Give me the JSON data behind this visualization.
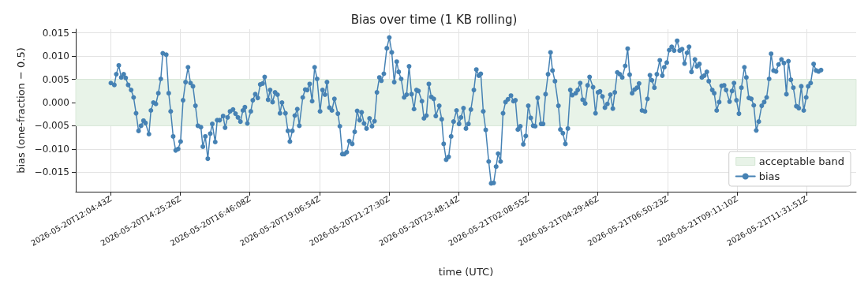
{
  "chart_data": {
    "type": "line",
    "title": "Bias over time (1 KB rolling)",
    "xlabel": "time (UTC)",
    "ylabel": "bias (one-fraction − 0.5)",
    "xlim": [
      "2026-05-20T10:54",
      "2026-05-21T13:12"
    ],
    "xticks": [
      "2026-05-20T12:04:43Z",
      "2026-05-20T14:25:26Z",
      "2026-05-20T16:46:08Z",
      "2026-05-20T19:06:54Z",
      "2026-05-20T21:27:30Z",
      "2026-05-20T23:48:14Z",
      "2026-05-21T02:08:55Z",
      "2026-05-21T04:29:46Z",
      "2026-05-21T06:50:23Z",
      "2026-05-21T09:11:10Z",
      "2026-05-21T11:31:51Z"
    ],
    "ylim": [
      -0.0192,
      0.0158
    ],
    "yticks": [
      {
        "value": -0.015,
        "label": "−0.015"
      },
      {
        "value": -0.01,
        "label": "−0.010"
      },
      {
        "value": -0.005,
        "label": "−0.005"
      },
      {
        "value": 0,
        "label": "0.000"
      },
      0.005,
      {
        "value": 0.01,
        "label": "0.010"
      },
      0.015
    ],
    "grid": true,
    "legend": "lower right",
    "marker": "circle",
    "line_style": "solid",
    "bands": [
      {
        "axis": "y",
        "from": -0.005,
        "to": 0.005,
        "label": "acceptable band",
        "color": "#e8f3e8"
      }
    ],
    "series": [
      {
        "name": "bias",
        "color": "#4682b4",
        "x": [
          "2026-05-20T12:05",
          "2026-05-20T12:12",
          "2026-05-20T12:16",
          "2026-05-20T12:21",
          "2026-05-20T12:26",
          "2026-05-20T12:31",
          "2026-05-20T12:35",
          "2026-05-20T12:40",
          "2026-05-20T12:46",
          "2026-05-20T12:51",
          "2026-05-20T12:56",
          "2026-05-20T13:01",
          "2026-05-20T13:06",
          "2026-05-20T13:11",
          "2026-05-20T13:15",
          "2026-05-20T13:22",
          "2026-05-20T13:26",
          "2026-05-20T13:31",
          "2026-05-20T13:36",
          "2026-05-20T13:41",
          "2026-05-20T13:46",
          "2026-05-20T13:50",
          "2026-05-20T13:57",
          "2026-05-20T14:02",
          "2026-05-20T14:06",
          "2026-05-20T14:11",
          "2026-05-20T14:16",
          "2026-05-20T14:21",
          "2026-05-20T14:26",
          "2026-05-20T14:31",
          "2026-05-20T14:36",
          "2026-05-20T14:41",
          "2026-05-20T14:46",
          "2026-05-20T14:51",
          "2026-05-20T14:56",
          "2026-05-20T15:01",
          "2026-05-20T15:07",
          "2026-05-20T15:11",
          "2026-05-20T15:16",
          "2026-05-20T15:21",
          "2026-05-20T15:26",
          "2026-05-20T15:30",
          "2026-05-20T15:36",
          "2026-05-20T15:40",
          "2026-05-20T15:45",
          "2026-05-20T15:52",
          "2026-05-20T15:56",
          "2026-05-20T16:01",
          "2026-05-20T16:06",
          "2026-05-20T16:12",
          "2026-05-20T16:17",
          "2026-05-20T16:22",
          "2026-05-20T16:27",
          "2026-05-20T16:32",
          "2026-05-20T16:36",
          "2026-05-20T16:41",
          "2026-05-20T16:48",
          "2026-05-20T16:52",
          "2026-05-20T16:57",
          "2026-05-20T17:02",
          "2026-05-20T17:07",
          "2026-05-20T17:12",
          "2026-05-20T17:16",
          "2026-05-20T17:23",
          "2026-05-20T17:27",
          "2026-05-20T17:32",
          "2026-05-20T17:37",
          "2026-05-20T17:42",
          "2026-05-20T17:47",
          "2026-05-20T17:51",
          "2026-05-20T17:58",
          "2026-05-20T18:03",
          "2026-05-20T18:07",
          "2026-05-20T18:12",
          "2026-05-20T18:17",
          "2026-05-20T18:22",
          "2026-05-20T18:26",
          "2026-05-20T18:33",
          "2026-05-20T18:38",
          "2026-05-20T18:42",
          "2026-05-20T18:47",
          "2026-05-20T18:52",
          "2026-05-20T18:57",
          "2026-05-20T19:02",
          "2026-05-20T19:08",
          "2026-05-20T19:13",
          "2026-05-20T19:18",
          "2026-05-20T19:22",
          "2026-05-20T19:27",
          "2026-05-20T19:32",
          "2026-05-20T19:37",
          "2026-05-20T19:44",
          "2026-05-20T19:48",
          "2026-05-20T19:53",
          "2026-05-20T19:57",
          "2026-05-20T20:02",
          "2026-05-20T20:07",
          "2026-05-20T20:13",
          "2026-05-20T20:18",
          "2026-05-20T20:23",
          "2026-05-20T20:28",
          "2026-05-20T20:32",
          "2026-05-20T20:37",
          "2026-05-20T20:42",
          "2026-05-20T20:48",
          "2026-05-20T20:53",
          "2026-05-20T20:58",
          "2026-05-20T21:03",
          "2026-05-20T21:08",
          "2026-05-20T21:12",
          "2026-05-20T21:17",
          "2026-05-20T21:23",
          "2026-05-20T21:28",
          "2026-05-20T21:33",
          "2026-05-20T21:38",
          "2026-05-20T21:43",
          "2026-05-20T21:47",
          "2026-05-20T21:52",
          "2026-05-20T21:58",
          "2026-05-20T22:03",
          "2026-05-20T22:08",
          "2026-05-20T22:13",
          "2026-05-20T22:18",
          "2026-05-20T22:23",
          "2026-05-20T22:27",
          "2026-05-20T22:34",
          "2026-05-20T22:38",
          "2026-05-20T22:43",
          "2026-05-20T22:48",
          "2026-05-20T22:53",
          "2026-05-20T22:58",
          "2026-05-20T23:02",
          "2026-05-20T23:09",
          "2026-05-20T23:14",
          "2026-05-20T23:18",
          "2026-05-20T23:23",
          "2026-05-20T23:28",
          "2026-05-20T23:33",
          "2026-05-20T23:38",
          "2026-05-20T23:44",
          "2026-05-20T23:49",
          "2026-05-20T23:53",
          "2026-05-20T23:58",
          "2026-05-21T00:03",
          "2026-05-21T00:08",
          "2026-05-21T00:13",
          "2026-05-21T00:19",
          "2026-05-21T00:24",
          "2026-05-21T00:29",
          "2026-05-21T00:33",
          "2026-05-21T00:38",
          "2026-05-21T00:43",
          "2026-05-21T00:49",
          "2026-05-21T00:54",
          "2026-05-21T00:59",
          "2026-05-21T01:04",
          "2026-05-21T01:08",
          "2026-05-21T01:13",
          "2026-05-21T01:18",
          "2026-05-21T01:23",
          "2026-05-21T01:28",
          "2026-05-21T01:34",
          "2026-05-21T01:39",
          "2026-05-21T01:43",
          "2026-05-21T01:48",
          "2026-05-21T01:53",
          "2026-05-21T01:59",
          "2026-05-21T02:04",
          "2026-05-21T02:09",
          "2026-05-21T02:14",
          "2026-05-21T02:19",
          "2026-05-21T02:23",
          "2026-05-21T02:28",
          "2026-05-21T02:35",
          "2026-05-21T02:39",
          "2026-05-21T02:44",
          "2026-05-21T02:49",
          "2026-05-21T02:54",
          "2026-05-21T02:58",
          "2026-05-21T03:03",
          "2026-05-21T03:10",
          "2026-05-21T03:14",
          "2026-05-21T03:19",
          "2026-05-21T03:24",
          "2026-05-21T03:29",
          "2026-05-21T03:34",
          "2026-05-21T03:38",
          "2026-05-21T03:45",
          "2026-05-21T03:49",
          "2026-05-21T03:54",
          "2026-05-21T03:59",
          "2026-05-21T04:04",
          "2026-05-21T04:09",
          "2026-05-21T04:13",
          "2026-05-21T04:20",
          "2026-05-21T04:25",
          "2026-05-21T04:30",
          "2026-05-21T04:34",
          "2026-05-21T04:39",
          "2026-05-21T04:44",
          "2026-05-21T04:49",
          "2026-05-21T04:55",
          "2026-05-21T05:00",
          "2026-05-21T05:04",
          "2026-05-21T05:09",
          "2026-05-21T05:14",
          "2026-05-21T05:19",
          "2026-05-21T05:25",
          "2026-05-21T05:30",
          "2026-05-21T05:34",
          "2026-05-21T05:39",
          "2026-05-21T05:44",
          "2026-05-21T05:49",
          "2026-05-21T05:53",
          "2026-05-21T05:59",
          "2026-05-21T06:05",
          "2026-05-21T06:10",
          "2026-05-21T06:15",
          "2026-05-21T06:19",
          "2026-05-21T06:24",
          "2026-05-21T06:29",
          "2026-05-21T06:35",
          "2026-05-21T06:40",
          "2026-05-21T06:44",
          "2026-05-21T06:49",
          "2026-05-21T06:54",
          "2026-05-21T06:59",
          "2026-05-21T07:04",
          "2026-05-21T07:10",
          "2026-05-21T07:15",
          "2026-05-21T07:20",
          "2026-05-21T07:25",
          "2026-05-21T07:30",
          "2026-05-21T07:34",
          "2026-05-21T07:39",
          "2026-05-21T07:46",
          "2026-05-21T07:50",
          "2026-05-21T07:55",
          "2026-05-21T08:00",
          "2026-05-21T08:05",
          "2026-05-21T08:10",
          "2026-05-21T08:14",
          "2026-05-21T08:21",
          "2026-05-21T08:25",
          "2026-05-21T08:30",
          "2026-05-21T08:35",
          "2026-05-21T08:40",
          "2026-05-21T08:45",
          "2026-05-21T08:49",
          "2026-05-21T08:56",
          "2026-05-21T09:01",
          "2026-05-21T09:05",
          "2026-05-21T09:10",
          "2026-05-21T09:15",
          "2026-05-21T09:20",
          "2026-05-21T09:26",
          "2026-05-21T09:30",
          "2026-05-21T09:35",
          "2026-05-21T09:40",
          "2026-05-21T09:45",
          "2026-05-21T09:50",
          "2026-05-21T09:55",
          "2026-05-21T10:01",
          "2026-05-21T10:06",
          "2026-05-21T10:11",
          "2026-05-21T10:16",
          "2026-05-21T10:20",
          "2026-05-21T10:25",
          "2026-05-21T10:30",
          "2026-05-21T10:35",
          "2026-05-21T10:41",
          "2026-05-21T10:46",
          "2026-05-21T10:51",
          "2026-05-21T10:55",
          "2026-05-21T11:00",
          "2026-05-21T11:05",
          "2026-05-21T11:11",
          "2026-05-21T11:16",
          "2026-05-21T11:21",
          "2026-05-21T11:26",
          "2026-05-21T11:31",
          "2026-05-21T11:35",
          "2026-05-21T11:40",
          "2026-05-21T11:46",
          "2026-05-21T11:51",
          "2026-05-21T11:56",
          "2026-05-21T12:01"
        ],
        "values": [
          0.0042,
          0.0038,
          0.0061,
          0.008,
          0.0054,
          0.0061,
          0.0053,
          0.0038,
          0.0027,
          0.0011,
          -0.0023,
          -0.0061,
          -0.005,
          -0.0039,
          -0.0044,
          -0.0068,
          -0.0017,
          0.0,
          -0.0003,
          0.002,
          0.0051,
          0.0106,
          0.0103,
          0.002,
          -0.0019,
          -0.0073,
          -0.0103,
          -0.01,
          -0.0084,
          0.0005,
          0.0044,
          0.0076,
          0.0042,
          0.0035,
          -0.0007,
          -0.005,
          -0.0053,
          -0.0095,
          -0.0073,
          -0.0121,
          -0.0067,
          -0.0046,
          -0.0085,
          -0.0038,
          -0.0038,
          -0.0029,
          -0.0054,
          -0.0032,
          -0.0019,
          -0.0015,
          -0.0024,
          -0.0032,
          -0.0041,
          -0.0017,
          -0.001,
          -0.0045,
          -0.0019,
          0.0005,
          0.0018,
          0.001,
          0.0039,
          0.0041,
          0.0055,
          0.0006,
          0.0027,
          0.0001,
          0.0022,
          0.0017,
          -0.0023,
          0.0,
          -0.0023,
          -0.0061,
          -0.0084,
          -0.0061,
          -0.0028,
          -0.0014,
          -0.005,
          0.0011,
          0.0028,
          0.0027,
          0.004,
          0.0003,
          0.0076,
          0.0051,
          -0.0019,
          0.0027,
          0.0017,
          0.0044,
          -0.0011,
          -0.0017,
          0.0008,
          -0.0024,
          -0.0051,
          -0.0111,
          -0.0111,
          -0.0107,
          -0.0083,
          -0.0089,
          -0.0063,
          -0.0018,
          -0.0038,
          -0.0021,
          -0.0045,
          -0.0056,
          -0.0034,
          -0.0051,
          -0.004,
          0.0022,
          0.0054,
          0.0047,
          0.0062,
          0.0117,
          0.014,
          0.0108,
          0.0044,
          0.0088,
          0.0066,
          0.0051,
          0.0011,
          0.0017,
          0.0078,
          0.0018,
          -0.0014,
          0.0027,
          0.0025,
          0.0003,
          -0.0034,
          -0.0028,
          0.004,
          0.0012,
          0.0008,
          -0.0029,
          -0.0007,
          -0.0036,
          -0.0089,
          -0.0123,
          -0.0117,
          -0.0073,
          -0.0041,
          -0.0017,
          -0.0046,
          -0.0032,
          -0.0012,
          -0.0056,
          -0.0046,
          -0.0015,
          0.0027,
          0.0071,
          0.0058,
          0.0062,
          -0.0019,
          -0.0059,
          -0.0127,
          -0.0174,
          -0.0173,
          -0.0138,
          -0.011,
          -0.0127,
          -0.0023,
          0.0001,
          0.0007,
          0.0015,
          0.0003,
          0.0005,
          -0.0058,
          -0.0051,
          -0.009,
          -0.0072,
          -0.0007,
          -0.0033,
          -0.005,
          -0.0051,
          0.001,
          -0.0046,
          -0.0046,
          0.0018,
          0.0061,
          0.0108,
          0.0069,
          0.0046,
          -0.0007,
          -0.0058,
          -0.0066,
          -0.0089,
          -0.0056,
          0.0027,
          0.0016,
          0.002,
          0.0027,
          0.0042,
          0.0006,
          -0.0002,
          0.0037,
          0.0055,
          0.0033,
          -0.0023,
          0.0022,
          0.0024,
          0.0013,
          -0.0011,
          -0.0003,
          0.0017,
          -0.0013,
          0.0022,
          0.0065,
          0.0061,
          0.0054,
          0.0079,
          0.0116,
          0.006,
          0.002,
          0.0028,
          0.0032,
          0.0041,
          -0.0017,
          -0.0019,
          0.0008,
          0.0059,
          0.0048,
          0.0032,
          0.0061,
          0.0091,
          0.0058,
          0.0076,
          0.0086,
          0.0113,
          0.012,
          0.0112,
          0.0133,
          0.0112,
          0.0115,
          0.0084,
          0.0107,
          0.012,
          0.0066,
          0.0093,
          0.0078,
          0.0083,
          0.0054,
          0.0058,
          0.0066,
          0.0046,
          0.0027,
          0.002,
          -0.0017,
          0.0001,
          0.0036,
          0.0037,
          0.0027,
          0.0002,
          0.0025,
          0.0042,
          0.0005,
          -0.0024,
          0.0032,
          0.0076,
          0.0054,
          0.001,
          0.0008,
          -0.0006,
          -0.006,
          -0.0041,
          -0.0007,
          0.0001,
          0.0011,
          0.0051,
          0.0105,
          0.0069,
          0.0067,
          0.0082,
          0.0093,
          0.0085,
          0.0018,
          0.0089,
          0.0049,
          0.0032,
          -0.0008,
          -0.0012,
          0.0035,
          -0.0017,
          0.0011,
          0.0035,
          0.0042,
          0.0083,
          0.0069,
          0.0067,
          0.007
        ]
      }
    ]
  }
}
